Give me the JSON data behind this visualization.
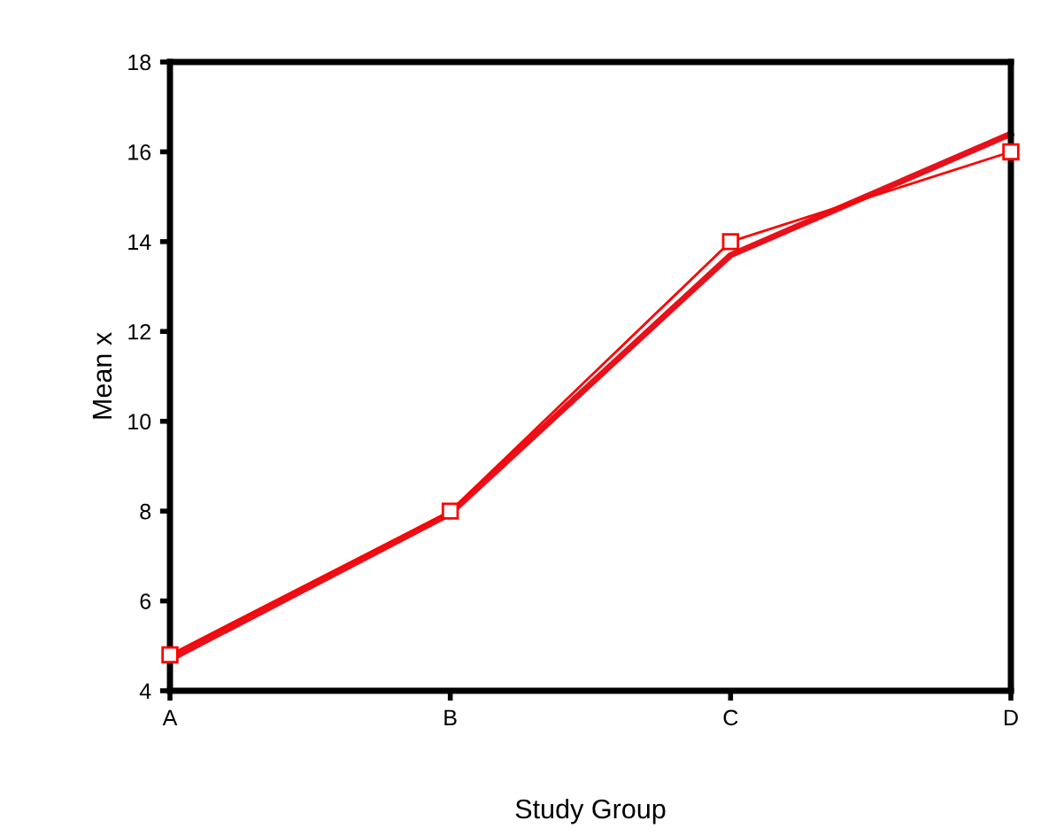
{
  "chart_data": {
    "type": "line",
    "xlabel": "Study Group",
    "ylabel": "Mean x",
    "categories": [
      "A",
      "B",
      "C",
      "D"
    ],
    "series": [
      {
        "color": "#ff0000",
        "values": [
          4.8,
          8.0,
          14.0,
          16.0
        ],
        "marker": "square"
      },
      {
        "color": "#e8101a",
        "values": [
          4.7,
          7.95,
          13.7,
          16.4
        ],
        "marker": "none"
      }
    ],
    "ylim": [
      4,
      18
    ],
    "yticks": [
      4,
      6,
      8,
      10,
      12,
      14,
      16,
      18
    ],
    "grid": false,
    "line_style": "solid"
  }
}
